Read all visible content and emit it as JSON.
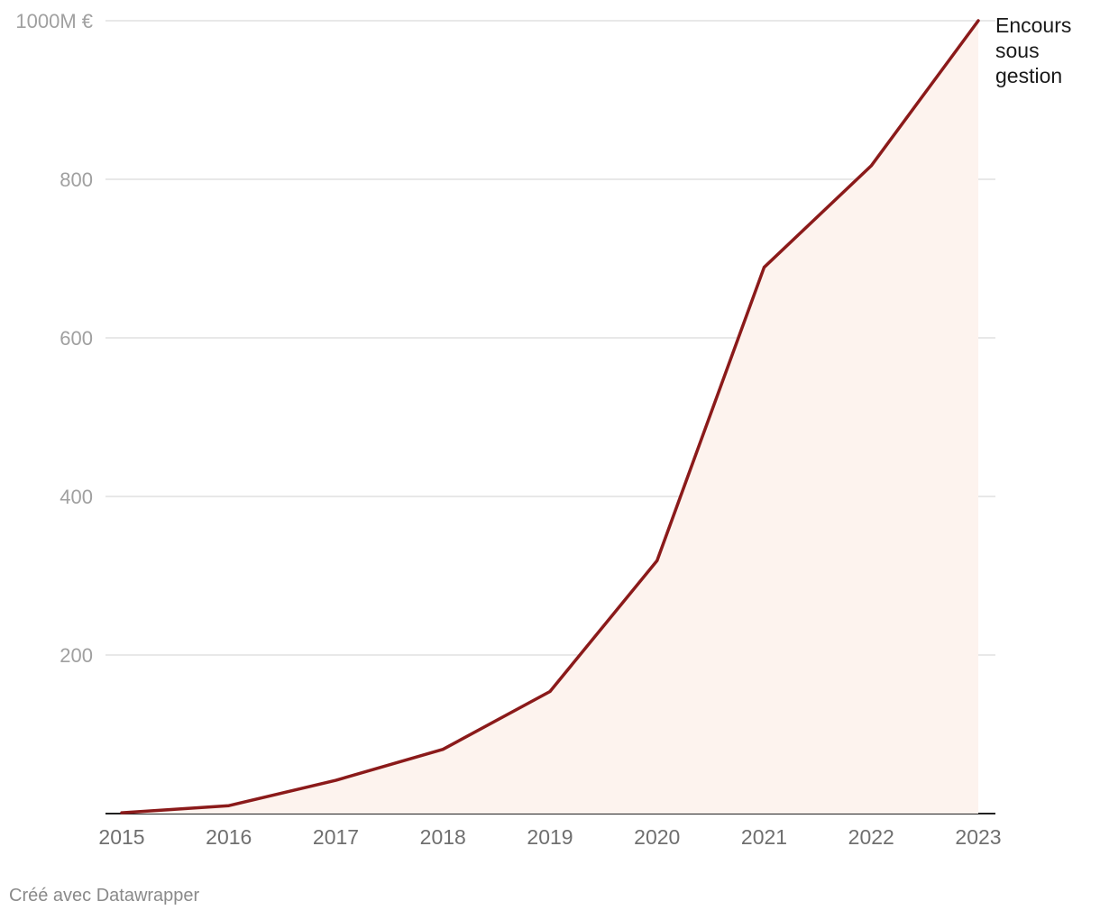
{
  "chart_data": {
    "type": "area",
    "x": [
      2015,
      2016,
      2017,
      2018,
      2019,
      2020,
      2021,
      2022,
      2023
    ],
    "series": [
      {
        "name": "Encours sous gestion",
        "values": [
          1,
          10,
          42,
          81,
          154,
          319,
          689,
          817,
          1000
        ]
      }
    ],
    "y_ticks": [
      {
        "value": 200,
        "label": "200"
      },
      {
        "value": 400,
        "label": "400"
      },
      {
        "value": 600,
        "label": "600"
      },
      {
        "value": 800,
        "label": "800"
      },
      {
        "value": 1000,
        "label": "1000M €"
      }
    ],
    "series_label_lines": [
      "Encours",
      "sous",
      "gestion"
    ],
    "ylim": [
      0,
      1000
    ],
    "xlim": [
      2015,
      2023
    ],
    "grid": true,
    "legend": "inline-right-end",
    "colors": {
      "line": "#8b1a1a",
      "area": "#fdf3ee"
    }
  },
  "footer": {
    "credit": "Créé avec Datawrapper"
  }
}
